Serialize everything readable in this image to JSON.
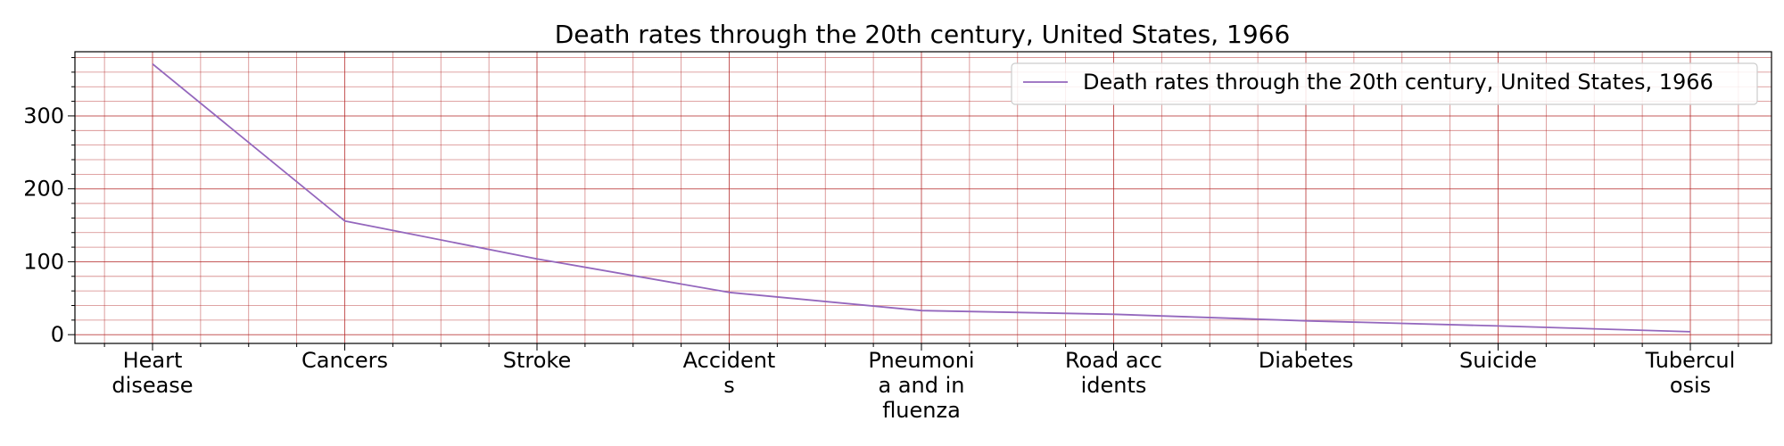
{
  "chart_data": {
    "type": "line",
    "title": "Death rates through the 20th century, United States, 1966",
    "xlabel": "",
    "ylabel": "",
    "categories": [
      "Heart disease",
      "Cancers",
      "Stroke",
      "Accidents",
      "Pneumonia and influenza",
      "Road accidents",
      "Diabetes",
      "Suicide",
      "Tuberculosis"
    ],
    "category_labels": [
      [
        "Heart",
        "disease"
      ],
      [
        "Cancers"
      ],
      [
        "Stroke"
      ],
      [
        "Accident",
        "s"
      ],
      [
        "Pneumoni",
        "a and in",
        "fluenza"
      ],
      [
        "Road acc",
        "idents"
      ],
      [
        "Diabetes"
      ],
      [
        "Suicide"
      ],
      [
        "Tubercul",
        "osis"
      ]
    ],
    "series": [
      {
        "name": "Death rates through the 20th century, United States, 1966",
        "color": "#9467bd",
        "values": [
          371.2,
          156.0,
          104.0,
          58.0,
          33.0,
          28.0,
          19.0,
          12.0,
          4.0
        ]
      }
    ],
    "ylim": [
      -12,
      388
    ],
    "yticks": [
      0,
      100,
      200,
      300
    ],
    "ytick_labels": [
      "0",
      "100",
      "200",
      "300"
    ],
    "grid": true,
    "grid_color": "#b22222",
    "legend_position": "upper right"
  }
}
